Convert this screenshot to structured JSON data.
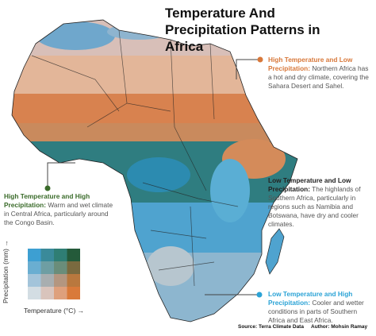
{
  "title": "Temperature And Precipitation Patterns in Africa",
  "annotations": [
    {
      "heading": "High Temperature and Low Precipitation:",
      "text": "Northern Africa has a hot and dry climate, covering the Sahara Desert and Sahel."
    },
    {
      "heading": "High Temperature and High Precipitation:",
      "text": "Warm and wet climate in Central Africa, particularly around the Congo Basin."
    },
    {
      "heading": "Low Temperature and Low Precipitation:",
      "text": "The highlands of Southern Africa, particularly in regions such as Namibia and Botswana, have dry and cooler climates."
    },
    {
      "heading": "Low Temperature and High Precipitation:",
      "text": "Cooler and wetter conditions in parts of Southern Africa and East Africa."
    }
  ],
  "legend": {
    "y_label": "Precipitation (mm) →",
    "x_label": "Temperature (°C) →"
  },
  "footer": {
    "source": "Source: Terra Climate Data",
    "author": "Author: Mohsin Ramay"
  }
}
